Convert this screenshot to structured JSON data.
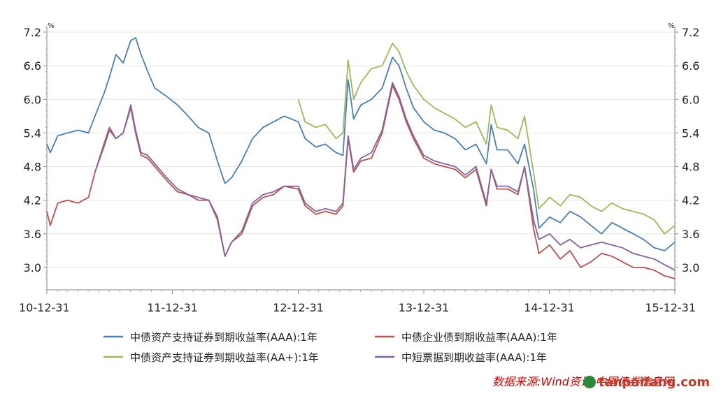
{
  "chart_data": {
    "type": "line",
    "y_unit_label": "%",
    "ylim": [
      2.6,
      7.3
    ],
    "yticks": [
      3.0,
      3.6,
      4.2,
      4.8,
      5.4,
      6.0,
      6.6,
      7.2
    ],
    "ytick_labels": [
      "3.0",
      "3.6",
      "4.2",
      "4.8",
      "5.4",
      "6.0",
      "6.6",
      "7.2"
    ],
    "xticks": [
      "2010-12-31",
      "2011-12-31",
      "2012-12-31",
      "2013-12-31",
      "2014-12-31",
      "2015-12-31"
    ],
    "xtick_labels": [
      "10-12-31",
      "11-12-31",
      "12-12-31",
      "13-12-31",
      "14-12-31",
      "15-12-31"
    ],
    "grid": true,
    "legend_position": "bottom",
    "series": [
      {
        "name": "中债资产支持证券到期收益率(AAA):1年",
        "color": "#4a7ebb",
        "points": [
          [
            "2010-12-31",
            5.2
          ],
          [
            "2011-01-10",
            5.05
          ],
          [
            "2011-02-01",
            5.35
          ],
          [
            "2011-03-01",
            5.4
          ],
          [
            "2011-04-01",
            5.45
          ],
          [
            "2011-05-01",
            5.4
          ],
          [
            "2011-05-20",
            5.7
          ],
          [
            "2011-06-15",
            6.1
          ],
          [
            "2011-07-01",
            6.4
          ],
          [
            "2011-07-20",
            6.8
          ],
          [
            "2011-08-10",
            6.65
          ],
          [
            "2011-09-01",
            7.05
          ],
          [
            "2011-09-15",
            7.1
          ],
          [
            "2011-10-01",
            6.8
          ],
          [
            "2011-10-20",
            6.5
          ],
          [
            "2011-11-10",
            6.2
          ],
          [
            "2011-12-15",
            6.05
          ],
          [
            "2012-01-15",
            5.9
          ],
          [
            "2012-02-15",
            5.7
          ],
          [
            "2012-03-15",
            5.5
          ],
          [
            "2012-04-15",
            5.4
          ],
          [
            "2012-05-10",
            4.9
          ],
          [
            "2012-06-01",
            4.5
          ],
          [
            "2012-06-20",
            4.6
          ],
          [
            "2012-07-20",
            4.9
          ],
          [
            "2012-08-20",
            5.3
          ],
          [
            "2012-09-20",
            5.5
          ],
          [
            "2012-10-20",
            5.6
          ],
          [
            "2012-11-20",
            5.7
          ],
          [
            "2012-12-31",
            5.6
          ],
          [
            "2013-01-20",
            5.3
          ],
          [
            "2013-02-20",
            5.15
          ],
          [
            "2013-03-20",
            5.2
          ],
          [
            "2013-04-20",
            5.05
          ],
          [
            "2013-05-10",
            5.0
          ],
          [
            "2013-05-25",
            6.35
          ],
          [
            "2013-06-10",
            5.65
          ],
          [
            "2013-07-01",
            5.9
          ],
          [
            "2013-08-01",
            6.0
          ],
          [
            "2013-09-01",
            6.2
          ],
          [
            "2013-10-01",
            6.75
          ],
          [
            "2013-10-20",
            6.6
          ],
          [
            "2013-11-10",
            6.2
          ],
          [
            "2013-12-01",
            5.85
          ],
          [
            "2013-12-31",
            5.6
          ],
          [
            "2014-01-31",
            5.45
          ],
          [
            "2014-03-01",
            5.4
          ],
          [
            "2014-04-01",
            5.3
          ],
          [
            "2014-05-01",
            5.1
          ],
          [
            "2014-06-01",
            5.2
          ],
          [
            "2014-07-01",
            4.85
          ],
          [
            "2014-07-15",
            5.55
          ],
          [
            "2014-08-01",
            5.1
          ],
          [
            "2014-09-01",
            5.1
          ],
          [
            "2014-10-01",
            4.85
          ],
          [
            "2014-10-20",
            5.2
          ],
          [
            "2014-11-15",
            4.4
          ],
          [
            "2014-12-01",
            3.7
          ],
          [
            "2015-01-01",
            3.9
          ],
          [
            "2015-02-01",
            3.8
          ],
          [
            "2015-03-01",
            4.0
          ],
          [
            "2015-04-01",
            3.9
          ],
          [
            "2015-05-01",
            3.75
          ],
          [
            "2015-06-01",
            3.6
          ],
          [
            "2015-07-01",
            3.8
          ],
          [
            "2015-08-01",
            3.7
          ],
          [
            "2015-09-01",
            3.6
          ],
          [
            "2015-10-01",
            3.5
          ],
          [
            "2015-11-01",
            3.35
          ],
          [
            "2015-12-01",
            3.3
          ],
          [
            "2015-12-31",
            3.45
          ]
        ]
      },
      {
        "name": "中债企业债到期收益率(AAA):1年",
        "color": "#c0504d",
        "points": [
          [
            "2010-12-31",
            4.0
          ],
          [
            "2011-01-10",
            3.75
          ],
          [
            "2011-02-01",
            4.15
          ],
          [
            "2011-03-01",
            4.2
          ],
          [
            "2011-04-01",
            4.15
          ],
          [
            "2011-05-01",
            4.25
          ],
          [
            "2011-05-20",
            4.7
          ],
          [
            "2011-06-15",
            5.2
          ],
          [
            "2011-07-01",
            5.5
          ],
          [
            "2011-07-20",
            5.3
          ],
          [
            "2011-08-10",
            5.4
          ],
          [
            "2011-09-01",
            5.85
          ],
          [
            "2011-09-15",
            5.4
          ],
          [
            "2011-10-01",
            5.0
          ],
          [
            "2011-10-20",
            4.95
          ],
          [
            "2011-11-10",
            4.8
          ],
          [
            "2011-12-15",
            4.55
          ],
          [
            "2012-01-15",
            4.35
          ],
          [
            "2012-02-15",
            4.3
          ],
          [
            "2012-03-15",
            4.2
          ],
          [
            "2012-04-15",
            4.2
          ],
          [
            "2012-05-10",
            3.85
          ],
          [
            "2012-06-01",
            3.2
          ],
          [
            "2012-06-20",
            3.45
          ],
          [
            "2012-07-20",
            3.6
          ],
          [
            "2012-08-20",
            4.1
          ],
          [
            "2012-09-20",
            4.25
          ],
          [
            "2012-10-20",
            4.3
          ],
          [
            "2012-11-20",
            4.45
          ],
          [
            "2012-12-31",
            4.4
          ],
          [
            "2013-01-20",
            4.1
          ],
          [
            "2013-02-20",
            3.95
          ],
          [
            "2013-03-20",
            4.0
          ],
          [
            "2013-04-20",
            3.95
          ],
          [
            "2013-05-10",
            4.1
          ],
          [
            "2013-05-25",
            5.3
          ],
          [
            "2013-06-10",
            4.7
          ],
          [
            "2013-07-01",
            4.9
          ],
          [
            "2013-08-01",
            4.95
          ],
          [
            "2013-09-01",
            5.4
          ],
          [
            "2013-10-01",
            6.25
          ],
          [
            "2013-10-20",
            6.0
          ],
          [
            "2013-11-10",
            5.6
          ],
          [
            "2013-12-01",
            5.3
          ],
          [
            "2013-12-31",
            4.95
          ],
          [
            "2014-01-31",
            4.85
          ],
          [
            "2014-03-01",
            4.8
          ],
          [
            "2014-04-01",
            4.75
          ],
          [
            "2014-05-01",
            4.6
          ],
          [
            "2014-06-01",
            4.75
          ],
          [
            "2014-07-01",
            4.1
          ],
          [
            "2014-07-15",
            4.75
          ],
          [
            "2014-08-01",
            4.4
          ],
          [
            "2014-09-01",
            4.4
          ],
          [
            "2014-10-01",
            4.3
          ],
          [
            "2014-10-20",
            4.8
          ],
          [
            "2014-11-15",
            3.7
          ],
          [
            "2014-12-01",
            3.25
          ],
          [
            "2015-01-01",
            3.4
          ],
          [
            "2015-02-01",
            3.15
          ],
          [
            "2015-03-01",
            3.3
          ],
          [
            "2015-04-01",
            3.0
          ],
          [
            "2015-05-01",
            3.1
          ],
          [
            "2015-06-01",
            3.25
          ],
          [
            "2015-07-01",
            3.2
          ],
          [
            "2015-08-01",
            3.1
          ],
          [
            "2015-09-01",
            3.0
          ],
          [
            "2015-10-01",
            3.0
          ],
          [
            "2015-11-01",
            2.95
          ],
          [
            "2015-12-01",
            2.85
          ],
          [
            "2015-12-31",
            2.8
          ]
        ]
      },
      {
        "name": "中债资产支持证券到期收益率(AA+):1年",
        "color": "#9bbb59",
        "points": [
          [
            "2012-12-31",
            6.0
          ],
          [
            "2013-01-20",
            5.6
          ],
          [
            "2013-02-20",
            5.5
          ],
          [
            "2013-03-20",
            5.55
          ],
          [
            "2013-04-20",
            5.3
          ],
          [
            "2013-05-10",
            5.4
          ],
          [
            "2013-05-25",
            6.7
          ],
          [
            "2013-06-10",
            6.0
          ],
          [
            "2013-07-01",
            6.3
          ],
          [
            "2013-08-01",
            6.55
          ],
          [
            "2013-09-01",
            6.6
          ],
          [
            "2013-10-01",
            7.0
          ],
          [
            "2013-10-20",
            6.85
          ],
          [
            "2013-11-10",
            6.5
          ],
          [
            "2013-12-01",
            6.25
          ],
          [
            "2013-12-31",
            6.0
          ],
          [
            "2014-01-31",
            5.85
          ],
          [
            "2014-03-01",
            5.75
          ],
          [
            "2014-04-01",
            5.65
          ],
          [
            "2014-05-01",
            5.5
          ],
          [
            "2014-06-01",
            5.6
          ],
          [
            "2014-07-01",
            5.2
          ],
          [
            "2014-07-15",
            5.9
          ],
          [
            "2014-08-01",
            5.5
          ],
          [
            "2014-09-01",
            5.45
          ],
          [
            "2014-10-01",
            5.3
          ],
          [
            "2014-10-20",
            5.7
          ],
          [
            "2014-11-15",
            4.7
          ],
          [
            "2014-12-01",
            4.05
          ],
          [
            "2015-01-01",
            4.25
          ],
          [
            "2015-02-01",
            4.1
          ],
          [
            "2015-03-01",
            4.3
          ],
          [
            "2015-04-01",
            4.25
          ],
          [
            "2015-05-01",
            4.1
          ],
          [
            "2015-06-01",
            4.0
          ],
          [
            "2015-07-01",
            4.15
          ],
          [
            "2015-08-01",
            4.05
          ],
          [
            "2015-09-01",
            4.0
          ],
          [
            "2015-10-01",
            3.95
          ],
          [
            "2015-11-01",
            3.85
          ],
          [
            "2015-12-01",
            3.6
          ],
          [
            "2015-12-31",
            3.75
          ]
        ]
      },
      {
        "name": "中短票据到期收益率(AAA):1年",
        "color": "#8064a2",
        "points": [
          [
            "2011-05-20",
            4.7
          ],
          [
            "2011-06-15",
            5.15
          ],
          [
            "2011-07-01",
            5.45
          ],
          [
            "2011-07-20",
            5.3
          ],
          [
            "2011-08-10",
            5.4
          ],
          [
            "2011-09-01",
            5.9
          ],
          [
            "2011-09-15",
            5.45
          ],
          [
            "2011-10-01",
            5.05
          ],
          [
            "2011-10-20",
            5.0
          ],
          [
            "2011-11-10",
            4.85
          ],
          [
            "2011-12-15",
            4.6
          ],
          [
            "2012-01-15",
            4.4
          ],
          [
            "2012-02-15",
            4.3
          ],
          [
            "2012-03-15",
            4.25
          ],
          [
            "2012-04-15",
            4.2
          ],
          [
            "2012-05-10",
            3.9
          ],
          [
            "2012-06-01",
            3.2
          ],
          [
            "2012-06-20",
            3.45
          ],
          [
            "2012-07-20",
            3.65
          ],
          [
            "2012-08-20",
            4.15
          ],
          [
            "2012-09-20",
            4.3
          ],
          [
            "2012-10-20",
            4.35
          ],
          [
            "2012-11-20",
            4.45
          ],
          [
            "2012-12-31",
            4.45
          ],
          [
            "2013-01-20",
            4.15
          ],
          [
            "2013-02-20",
            4.0
          ],
          [
            "2013-03-20",
            4.05
          ],
          [
            "2013-04-20",
            4.0
          ],
          [
            "2013-05-10",
            4.15
          ],
          [
            "2013-05-25",
            5.35
          ],
          [
            "2013-06-10",
            4.75
          ],
          [
            "2013-07-01",
            4.95
          ],
          [
            "2013-08-01",
            5.05
          ],
          [
            "2013-09-01",
            5.45
          ],
          [
            "2013-10-01",
            6.3
          ],
          [
            "2013-10-20",
            6.05
          ],
          [
            "2013-11-10",
            5.65
          ],
          [
            "2013-12-01",
            5.35
          ],
          [
            "2013-12-31",
            5.0
          ],
          [
            "2014-01-31",
            4.9
          ],
          [
            "2014-03-01",
            4.85
          ],
          [
            "2014-04-01",
            4.8
          ],
          [
            "2014-05-01",
            4.65
          ],
          [
            "2014-06-01",
            4.8
          ],
          [
            "2014-07-01",
            4.15
          ],
          [
            "2014-07-15",
            4.75
          ],
          [
            "2014-08-01",
            4.45
          ],
          [
            "2014-09-01",
            4.45
          ],
          [
            "2014-10-01",
            4.35
          ],
          [
            "2014-10-20",
            4.8
          ],
          [
            "2014-11-15",
            3.85
          ],
          [
            "2014-12-01",
            3.5
          ],
          [
            "2015-01-01",
            3.6
          ],
          [
            "2015-02-01",
            3.4
          ],
          [
            "2015-03-01",
            3.5
          ],
          [
            "2015-04-01",
            3.35
          ],
          [
            "2015-05-01",
            3.4
          ],
          [
            "2015-06-01",
            3.45
          ],
          [
            "2015-07-01",
            3.4
          ],
          [
            "2015-08-01",
            3.35
          ],
          [
            "2015-09-01",
            3.25
          ],
          [
            "2015-10-01",
            3.2
          ],
          [
            "2015-11-01",
            3.15
          ],
          [
            "2015-12-01",
            3.05
          ],
          [
            "2015-12-31",
            2.95
          ]
        ]
      }
    ]
  },
  "source_text": "数据来源:Wind资讯,中国债券信息网",
  "watermark_text": "tanpaifang.com"
}
